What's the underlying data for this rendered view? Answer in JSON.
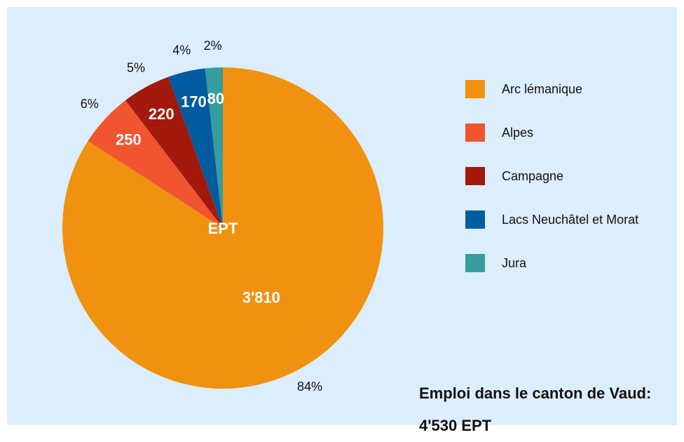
{
  "chart_data": {
    "type": "pie",
    "title": "Emploi dans le canton de Vaud: 4'530 EPT",
    "center_label": "EPT",
    "categories": [
      "Arc lémanique",
      "Alpes",
      "Campagne",
      "Lacs Neuchâtel et Morat",
      "Jura"
    ],
    "values": [
      3810,
      250,
      220,
      170,
      80
    ],
    "value_labels": [
      "3'810",
      "250",
      "220",
      "170",
      "80"
    ],
    "percent_labels": [
      "84%",
      "6%",
      "5%",
      "4%",
      "2%"
    ],
    "colors": [
      "#f0920f",
      "#f0552f",
      "#a3190c",
      "#005c9e",
      "#379c9e"
    ],
    "start_angle": 0,
    "direction": "clockwise",
    "legend": "right"
  }
}
